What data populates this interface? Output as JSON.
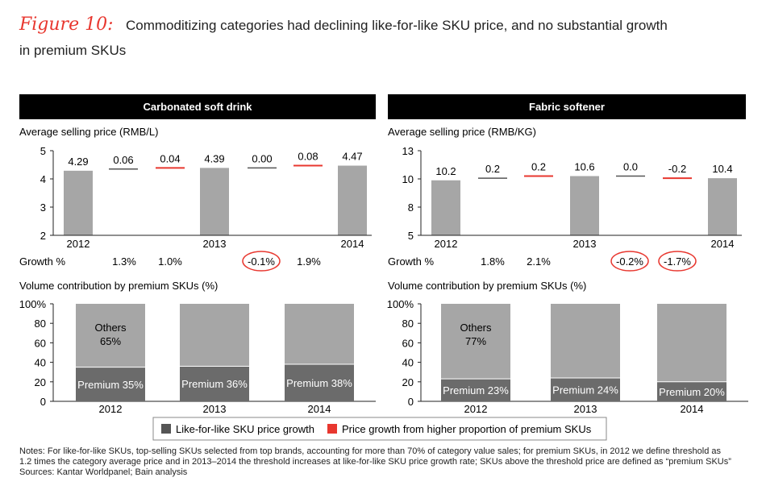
{
  "figure_label": "Figure 10:",
  "title_line1": "Commoditizing categories had declining like-for-like SKU price, and no substantial growth",
  "title_line2": "in premium SKUs",
  "colors": {
    "grey_bar": "#a6a6a6",
    "lfl": "#555555",
    "red": "#e8372f",
    "premium_bar": "#6b6b6b",
    "others_bar": "#a6a6a6",
    "header_bg": "#000000"
  },
  "legend": {
    "lfl_label": "Like-for-like SKU price growth",
    "premium_label": "Price growth from higher proportion of premium SKUs"
  },
  "notes": {
    "line1": "Notes: For like-for-like SKUs, top-selling SKUs selected from top brands, accounting for more than 70% of category value sales; for premium SKUs, in 2012 we define threshold as",
    "line2": "1.2 times the category average price and in 2013–2014 the threshold increases at like-for-like SKU price growth rate; SKUs above the threshold price are defined as “premium SKUs”",
    "line3": "Sources: Kantar Worldpanel; Bain analysis"
  },
  "chart_data": [
    {
      "panel": "Carbonated soft drink",
      "type": "bar",
      "subtitle": "Average selling price (RMB/L)",
      "ylim": [
        2,
        5
      ],
      "yticks": [
        "5",
        "4",
        "3",
        "2"
      ],
      "columns": [
        {
          "kind": "total",
          "value": 4.29,
          "label": "4.29"
        },
        {
          "kind": "like-for-like",
          "delta": 0.06,
          "label": "0.06"
        },
        {
          "kind": "premium",
          "delta": 0.04,
          "label": "0.04"
        },
        {
          "kind": "total",
          "value": 4.39,
          "label": "4.39"
        },
        {
          "kind": "like-for-like",
          "delta": 0.0,
          "label": "0.00"
        },
        {
          "kind": "premium",
          "delta": 0.08,
          "label": "0.08"
        },
        {
          "kind": "total",
          "value": 4.47,
          "label": "4.47"
        }
      ],
      "x_labels": [
        "2012",
        "2013",
        "2014"
      ],
      "growth_label": "Growth %",
      "growth": [
        {
          "text": "1.3%",
          "circled": false
        },
        {
          "text": "1.0%",
          "circled": false
        },
        {
          "text": "-0.1%",
          "circled": true
        },
        {
          "text": "1.9%",
          "circled": false
        }
      ],
      "volume": {
        "subtitle": "Volume contribution by premium SKUs (%)",
        "ylim": [
          0,
          100
        ],
        "yticks": [
          "100%",
          "80",
          "60",
          "40",
          "20",
          "0"
        ],
        "categories": [
          "2012",
          "2013",
          "2014"
        ],
        "premium": [
          35,
          36,
          38
        ],
        "premium_labels": [
          "Premium 35%",
          "Premium 36%",
          "Premium 38%"
        ],
        "others_label": "Others",
        "others_value_label": "65%"
      }
    },
    {
      "panel": "Fabric softener",
      "type": "bar",
      "subtitle": "Average selling price (RMB/KG)",
      "ylim": [
        5,
        13
      ],
      "yticks": [
        "13",
        "10",
        "8",
        "5"
      ],
      "columns": [
        {
          "kind": "total",
          "value": 10.2,
          "label": "10.2"
        },
        {
          "kind": "like-for-like",
          "delta": 0.2,
          "label": "0.2"
        },
        {
          "kind": "premium",
          "delta": 0.2,
          "label": "0.2"
        },
        {
          "kind": "total",
          "value": 10.6,
          "label": "10.6"
        },
        {
          "kind": "like-for-like",
          "delta": 0.0,
          "label": "0.0"
        },
        {
          "kind": "premium",
          "delta": -0.2,
          "label": "-0.2"
        },
        {
          "kind": "total",
          "value": 10.4,
          "label": "10.4"
        }
      ],
      "x_labels": [
        "2012",
        "2013",
        "2014"
      ],
      "growth_label": "Growth %",
      "growth": [
        {
          "text": "1.8%",
          "circled": false
        },
        {
          "text": "2.1%",
          "circled": false
        },
        {
          "text": "-0.2%",
          "circled": true
        },
        {
          "text": "-1.7%",
          "circled": true
        }
      ],
      "volume": {
        "subtitle": "Volume contribution by premium SKUs (%)",
        "ylim": [
          0,
          100
        ],
        "yticks": [
          "100%",
          "80",
          "60",
          "40",
          "20",
          "0"
        ],
        "categories": [
          "2012",
          "2013",
          "2014"
        ],
        "premium": [
          23,
          24,
          20
        ],
        "premium_labels": [
          "Premium 23%",
          "Premium 24%",
          "Premium 20%"
        ],
        "others_label": "Others",
        "others_value_label": "77%"
      }
    }
  ]
}
